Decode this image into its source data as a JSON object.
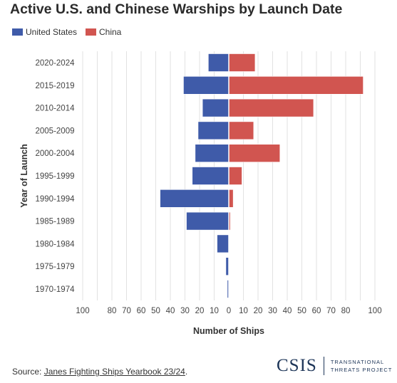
{
  "title": "Active U.S. and Chinese Warships by Launch Date",
  "legend": [
    {
      "name": "United States",
      "color": "#3f5ba9"
    },
    {
      "name": "China",
      "color": "#d15550"
    }
  ],
  "source": {
    "prefix": "Source: ",
    "link_text": "Janes Fighting Ships Yearbook 23/24",
    "suffix": "."
  },
  "logo": {
    "name": "CSIS",
    "tagline_1": "TRANSNATIONAL",
    "tagline_2": "THREATS PROJECT"
  },
  "chart_data": {
    "type": "bar",
    "orientation": "horizontal",
    "layout": "butterfly",
    "categories": [
      "2020-2024",
      "2015-2019",
      "2010-2014",
      "2005-2009",
      "2000-2004",
      "1995-1999",
      "1990-1994",
      "1985-1989",
      "1980-1984",
      "1975-1979",
      "1970-1974"
    ],
    "series": [
      {
        "name": "United States",
        "color": "#3f5ba9",
        "side": "left",
        "values": [
          14,
          31,
          18,
          21,
          23,
          25,
          47,
          29,
          8,
          2,
          1
        ]
      },
      {
        "name": "China",
        "color": "#d15550",
        "side": "right",
        "values": [
          18,
          92,
          58,
          17,
          35,
          9,
          3,
          1,
          0,
          0,
          0
        ]
      }
    ],
    "xlabel": "Number of Ships",
    "ylabel": "Year of Launch",
    "x_ticks": [
      {
        "label": "100",
        "value": -100
      },
      {
        "label": "80",
        "value": -80
      },
      {
        "label": "70",
        "value": -70
      },
      {
        "label": "60",
        "value": -60
      },
      {
        "label": "50",
        "value": -50
      },
      {
        "label": "40",
        "value": -40
      },
      {
        "label": "30",
        "value": -30
      },
      {
        "label": "20",
        "value": -20
      },
      {
        "label": "10",
        "value": -10
      },
      {
        "label": "0",
        "value": 0
      },
      {
        "label": "10",
        "value": 10
      },
      {
        "label": "20",
        "value": 20
      },
      {
        "label": "30",
        "value": 30
      },
      {
        "label": "40",
        "value": 40
      },
      {
        "label": "50",
        "value": 50
      },
      {
        "label": "60",
        "value": 60
      },
      {
        "label": "70",
        "value": 70
      },
      {
        "label": "80",
        "value": 80
      },
      {
        "label": "100",
        "value": 100
      }
    ],
    "grid": true,
    "legend_position": "top-left"
  }
}
